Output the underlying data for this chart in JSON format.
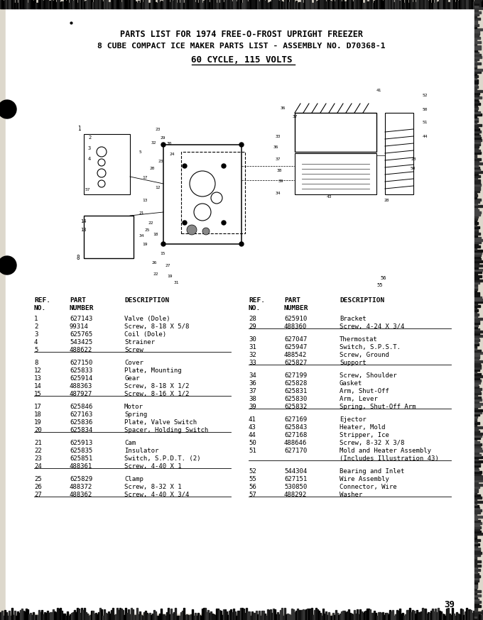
{
  "title1": "PARTS LIST FOR 1974 FREE-O-FROST UPRIGHT FREEZER",
  "title2": "8 CUBE COMPACT ICE MAKER PARTS LIST - ASSEMBLY NO. D70368-1",
  "title3": "60 CYCLE, 115 VOLTS",
  "bg_color": "#e8e4dc",
  "page_number": "39",
  "left_groups": [
    {
      "rows": [
        [
          "1",
          "627143",
          "Valve (Dole)"
        ],
        [
          "2",
          "99314",
          "Screw, 8-18 X 5/8"
        ],
        [
          "3",
          "625765",
          "Coil (Dole)"
        ],
        [
          "4",
          "543425",
          "Strainer"
        ],
        [
          "5",
          "488622",
          "Screw"
        ]
      ]
    },
    {
      "rows": [
        [
          "8",
          "627150",
          "Cover"
        ],
        [
          "12",
          "625833",
          "Plate, Mounting"
        ],
        [
          "13",
          "625914",
          "Gear"
        ],
        [
          "14",
          "488363",
          "Screw, 8-18 X 1/2"
        ],
        [
          "15",
          "487927",
          "Screw, 8-16 X 1/2"
        ]
      ]
    },
    {
      "rows": [
        [
          "17",
          "625846",
          "Motor"
        ],
        [
          "18",
          "627163",
          "Spring"
        ],
        [
          "19",
          "625836",
          "Plate, Valve Switch"
        ],
        [
          "20",
          "625834",
          "Spacer, Holding Switch"
        ]
      ]
    },
    {
      "rows": [
        [
          "21",
          "625913",
          "Cam"
        ],
        [
          "22",
          "625835",
          "Insulator"
        ],
        [
          "23",
          "625851",
          "Switch, S.P.D.T. (2)"
        ],
        [
          "24",
          "488361",
          "Screw, 4-40 X 1"
        ]
      ]
    },
    {
      "rows": [
        [
          "25",
          "625829",
          "Clamp"
        ],
        [
          "26",
          "488372",
          "Screw, 8-32 X 1"
        ],
        [
          "27",
          "488362",
          "Screw, 4-40 X 3/4"
        ]
      ]
    }
  ],
  "right_groups": [
    {
      "rows": [
        [
          "28",
          "625910",
          "Bracket"
        ],
        [
          "29",
          "488360",
          "Screw, 4-24 X 3/4"
        ]
      ]
    },
    {
      "rows": [
        [
          "30",
          "627047",
          "Thermostat"
        ],
        [
          "31",
          "625947",
          "Switch, S.P.S.T."
        ],
        [
          "32",
          "488542",
          "Screw, Ground"
        ],
        [
          "33",
          "625827",
          "Support"
        ]
      ]
    },
    {
      "rows": [
        [
          "34",
          "627199",
          "Screw, Shoulder"
        ],
        [
          "36",
          "625828",
          "Gasket"
        ],
        [
          "37",
          "625831",
          "Arm, Shut-Off"
        ],
        [
          "38",
          "625830",
          "Arm, Lever"
        ],
        [
          "39",
          "625832",
          "Spring, Shut-Off Arm"
        ]
      ]
    },
    {
      "rows": [
        [
          "41",
          "627169",
          "Ejector"
        ],
        [
          "43",
          "625843",
          "Heater, Mold"
        ],
        [
          "44",
          "627168",
          "Stripper, Ice"
        ],
        [
          "50",
          "488646",
          "Screw, 8-32 X 3/8"
        ],
        [
          "51",
          "627170",
          "Mold and Heater Assembly"
        ],
        [
          "",
          "",
          "(Includes Illustration 43)"
        ]
      ]
    },
    {
      "rows": [
        [
          "52",
          "544304",
          "Bearing and Inlet"
        ],
        [
          "55",
          "627151",
          "Wire Assembly"
        ],
        [
          "56",
          "530850",
          "Connector, Wire"
        ],
        [
          "57",
          "488292",
          "Washer"
        ]
      ]
    }
  ]
}
